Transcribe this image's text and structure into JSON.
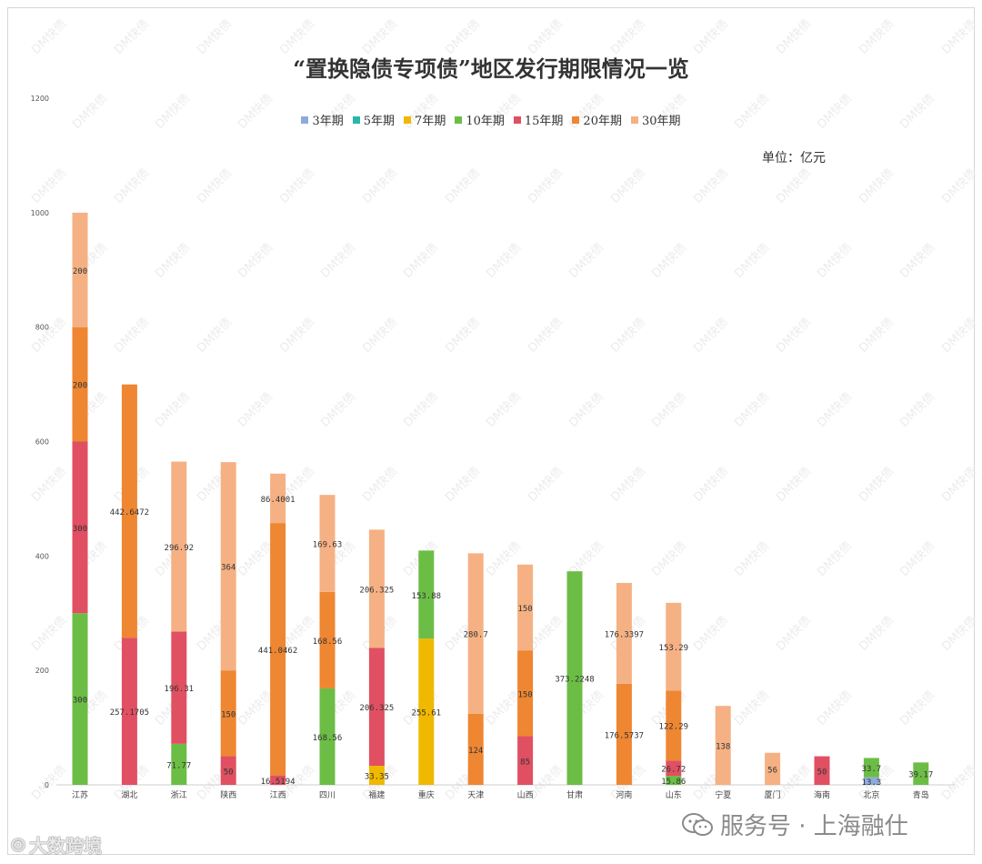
{
  "chart_data": {
    "type": "bar",
    "stacked": true,
    "title": "“置换隐债专项债”地区发行期限情况一览",
    "unit_note": "单位：亿元",
    "ylim": [
      0,
      1200
    ],
    "yticks": [
      0,
      200,
      400,
      600,
      800,
      1000,
      1200
    ],
    "categories": [
      "江苏",
      "湖北",
      "浙江",
      "陕西",
      "江西",
      "四川",
      "福建",
      "重庆",
      "天津",
      "山西",
      "甘肃",
      "河南",
      "山东",
      "宁夏",
      "厦门",
      "海南",
      "北京",
      "青岛"
    ],
    "series": [
      {
        "name": "3年期",
        "color": "#8faadc",
        "values": [
          0,
          0,
          0,
          0,
          0,
          0,
          0,
          0,
          0,
          0,
          0,
          0,
          0,
          0,
          0,
          0,
          13.3,
          0
        ]
      },
      {
        "name": "5年期",
        "color": "#2ab7a9",
        "values": [
          0,
          0,
          0,
          0,
          0,
          0,
          0,
          0,
          0,
          0,
          0,
          0,
          0,
          0,
          0,
          0,
          0,
          0
        ]
      },
      {
        "name": "7年期",
        "color": "#f0b800",
        "values": [
          0,
          0,
          0,
          0,
          0,
          0,
          33.35,
          255.61,
          0,
          0,
          0,
          0,
          0,
          0,
          0,
          0,
          0,
          0
        ]
      },
      {
        "name": "10年期",
        "color": "#6cbd45",
        "values": [
          300,
          0,
          71.77,
          0,
          0,
          168.56,
          0,
          153.88,
          0,
          0,
          373.2248,
          0,
          15.86,
          0,
          0,
          0,
          33.7,
          39.17
        ]
      },
      {
        "name": "15年期",
        "color": "#e05062",
        "values": [
          300,
          257.1705,
          196.31,
          50,
          16.5194,
          0,
          206.325,
          0,
          0,
          85,
          0,
          0,
          26.72,
          0,
          0,
          50,
          0,
          0
        ]
      },
      {
        "name": "20年期",
        "color": "#ee8632",
        "values": [
          200,
          442.6472,
          0,
          150,
          441.0462,
          168.56,
          0,
          0,
          124,
          150,
          0,
          176.5737,
          122.29,
          0,
          0,
          0,
          0,
          0
        ]
      },
      {
        "name": "30年期",
        "color": "#f5b183",
        "values": [
          200,
          0,
          296.92,
          364,
          86.4001,
          169.63,
          206.325,
          0,
          280.7,
          150,
          0,
          176.3397,
          153.29,
          138,
          56,
          0,
          0,
          0
        ]
      }
    ],
    "data_labels": [
      [
        "300",
        "300",
        "200",
        "200"
      ],
      [
        "257.1705",
        "442.6472"
      ],
      [
        "71.77",
        "196.31",
        "296.92"
      ],
      [
        "50",
        "150",
        "364"
      ],
      [
        "16.5194",
        "441.0462",
        "86.4001"
      ],
      [
        "168.56",
        "168.56",
        "169.63"
      ],
      [
        "33.35",
        "206.325",
        "206.325"
      ],
      [
        "255.61",
        "153.88"
      ],
      [
        "124",
        "280.7"
      ],
      [
        "85",
        "150",
        "150"
      ],
      [
        "373.2248"
      ],
      [
        "176.5737",
        "176.3397"
      ],
      [
        "15.86",
        "26.72",
        "122.29",
        "153.29"
      ],
      [
        "138"
      ],
      [
        "56"
      ],
      [
        "50"
      ],
      [
        "13.3",
        "33.7"
      ],
      [
        "39.17"
      ]
    ],
    "legend_position": "top-center",
    "grid": false
  },
  "watermark": "DM快债",
  "footer": {
    "wechat_text": "服务号 · 上海融仕",
    "source_text": "大数跨境"
  }
}
